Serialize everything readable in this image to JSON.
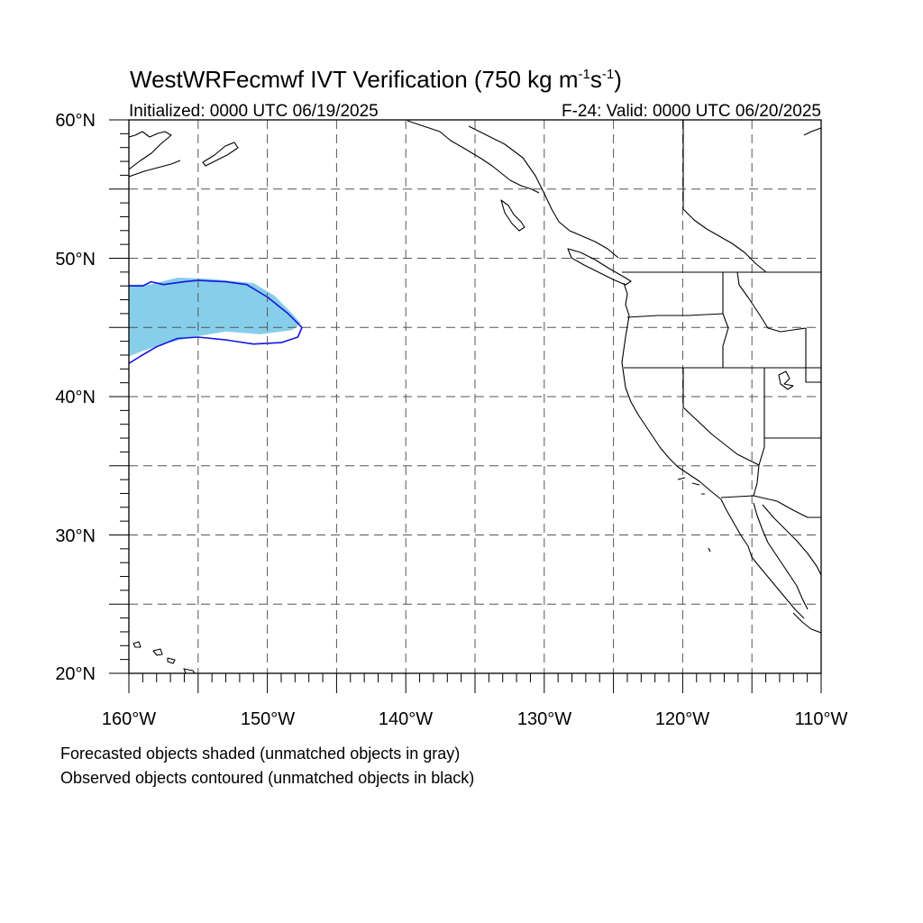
{
  "title": {
    "main_prefix": "WestWRFecmwf IVT Verification (750 kg m",
    "exp1": "-1",
    "mid": "s",
    "exp2": "-1",
    "suffix": ")"
  },
  "subtitle": {
    "left": "Initialized: 0000 UTC 06/19/2025",
    "right": "F-24: Valid: 0000 UTC 06/20/2025"
  },
  "axes": {
    "lon_range": [
      -160,
      -110
    ],
    "lat_range": [
      20,
      60
    ],
    "lon_labels": [
      {
        "lon": -160,
        "text": "160°W"
      },
      {
        "lon": -150,
        "text": "150°W"
      },
      {
        "lon": -140,
        "text": "140°W"
      },
      {
        "lon": -130,
        "text": "130°W"
      },
      {
        "lon": -120,
        "text": "120°W"
      },
      {
        "lon": -110,
        "text": "110°W"
      }
    ],
    "lat_labels": [
      {
        "lat": 60,
        "text": "60°N"
      },
      {
        "lat": 50,
        "text": "50°N"
      },
      {
        "lat": 40,
        "text": "40°N"
      },
      {
        "lat": 30,
        "text": "30°N"
      },
      {
        "lat": 20,
        "text": "20°N"
      }
    ],
    "grid_spacing_deg": 5,
    "grid_style": "dashed"
  },
  "legend_notes": [
    "Forecasted objects shaded (unmatched objects in gray)",
    "Observed objects contoured (unmatched objects in black)"
  ],
  "colors": {
    "forecast_fill": "#87CEEB",
    "observed_contour": "#1515E0",
    "coastline": "#000000",
    "grid": "#555555"
  },
  "map_data": {
    "forecast_object": [
      [
        -160,
        48.1
      ],
      [
        -158.5,
        48.1
      ],
      [
        -156.5,
        48.6
      ],
      [
        -154,
        48.5
      ],
      [
        -151,
        48.2
      ],
      [
        -149.5,
        47.3
      ],
      [
        -148.2,
        46.0
      ],
      [
        -147.6,
        45.3
      ],
      [
        -148.2,
        44.8
      ],
      [
        -150.5,
        44.5
      ],
      [
        -153,
        44.7
      ],
      [
        -155.5,
        44.3
      ],
      [
        -157.5,
        43.8
      ],
      [
        -159,
        43.3
      ],
      [
        -160,
        42.9
      ]
    ],
    "observed_object": [
      [
        -160,
        48.0
      ],
      [
        -159,
        48.0
      ],
      [
        -158.4,
        48.3
      ],
      [
        -157.5,
        48.1
      ],
      [
        -156,
        48.3
      ],
      [
        -155,
        48.4
      ],
      [
        -153,
        48.3
      ],
      [
        -151.5,
        48.1
      ],
      [
        -150,
        47.2
      ],
      [
        -148.5,
        46.0
      ],
      [
        -147.5,
        45.0
      ],
      [
        -147.8,
        44.3
      ],
      [
        -149,
        43.9
      ],
      [
        -151,
        43.8
      ],
      [
        -153,
        44.1
      ],
      [
        -155,
        44.3
      ],
      [
        -156.5,
        44.2
      ],
      [
        -158,
        43.6
      ],
      [
        -159.2,
        42.9
      ],
      [
        -160,
        42.4
      ]
    ]
  }
}
